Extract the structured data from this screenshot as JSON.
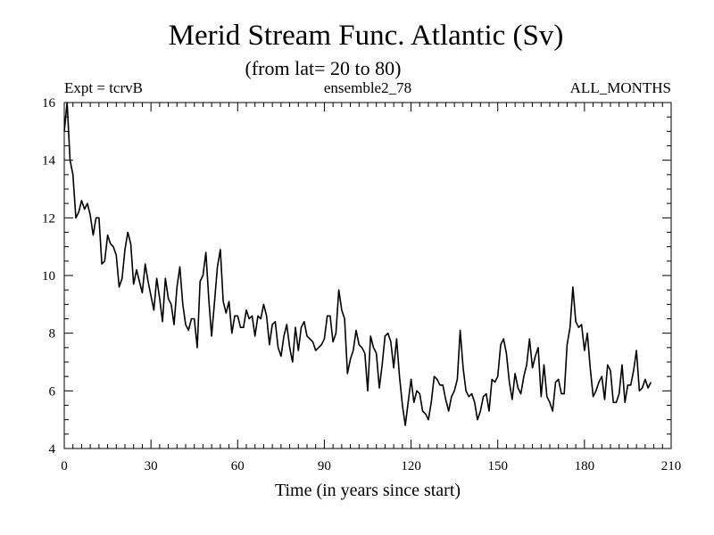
{
  "chart_data": {
    "type": "line",
    "title": "Merid Stream Func. Atlantic (Sv)",
    "subtitle": "(from lat= 20 to 80)",
    "header_left": "Expt = tcrvB",
    "header_center": "ensemble2_78",
    "header_right": "ALL_MONTHS",
    "xlabel": "Time (in years since start)",
    "ylabel": "",
    "xlim": [
      0,
      210
    ],
    "ylim": [
      4,
      16
    ],
    "xticks": [
      0,
      30,
      60,
      90,
      120,
      150,
      180,
      210
    ],
    "yticks": [
      4,
      6,
      8,
      10,
      12,
      14,
      16
    ],
    "x_minor_step": 3,
    "y_minor_step": 0.5,
    "grid": false,
    "series": [
      {
        "name": "ensemble2_78",
        "x_start": 0,
        "x_step": 1,
        "values": [
          15.0,
          16.0,
          14.0,
          13.5,
          12.0,
          12.2,
          12.6,
          12.3,
          12.5,
          12.1,
          11.4,
          12.0,
          12.0,
          10.4,
          10.5,
          11.4,
          11.1,
          11.0,
          10.7,
          9.6,
          9.9,
          10.9,
          11.5,
          11.1,
          9.7,
          10.2,
          9.8,
          9.4,
          10.4,
          9.8,
          9.3,
          8.8,
          9.9,
          9.2,
          8.4,
          9.9,
          9.2,
          9.0,
          8.3,
          9.6,
          10.3,
          9.0,
          8.3,
          8.1,
          8.5,
          8.5,
          7.5,
          9.8,
          10.0,
          10.8,
          9.2,
          7.9,
          9.1,
          10.3,
          10.9,
          9.1,
          8.7,
          9.1,
          8.0,
          8.6,
          8.6,
          8.2,
          8.2,
          8.8,
          8.5,
          8.6,
          7.9,
          8.6,
          8.5,
          9.0,
          8.6,
          7.6,
          8.3,
          8.4,
          7.5,
          7.2,
          7.9,
          8.3,
          7.5,
          7.0,
          8.2,
          7.4,
          8.2,
          8.4,
          7.9,
          7.8,
          7.7,
          7.4,
          7.5,
          7.6,
          7.8,
          8.6,
          8.6,
          7.7,
          8.0,
          9.5,
          8.8,
          8.5,
          6.6,
          7.1,
          7.4,
          8.1,
          7.6,
          7.5,
          7.3,
          6.0,
          7.9,
          7.5,
          7.3,
          6.1,
          6.9,
          7.9,
          8.0,
          7.7,
          6.8,
          7.8,
          6.5,
          5.5,
          4.8,
          5.6,
          6.4,
          5.6,
          6.0,
          5.9,
          5.3,
          5.2,
          5.0,
          5.6,
          6.5,
          6.4,
          6.2,
          6.2,
          5.7,
          5.3,
          5.8,
          6.0,
          6.4,
          8.1,
          6.8,
          6.0,
          5.8,
          5.9,
          5.6,
          5.0,
          5.3,
          5.8,
          5.9,
          5.3,
          6.4,
          6.3,
          6.5,
          7.6,
          7.8,
          7.3,
          6.3,
          5.7,
          6.6,
          6.1,
          5.9,
          6.5,
          6.9,
          7.8,
          6.8,
          7.2,
          7.5,
          5.8,
          6.9,
          5.8,
          5.6,
          5.3,
          6.3,
          6.4,
          5.9,
          5.9,
          7.6,
          8.2,
          9.6,
          8.4,
          8.2,
          8.3,
          7.4,
          8.0,
          6.8,
          5.8,
          6.0,
          6.3,
          6.5,
          5.7,
          6.9,
          6.7,
          5.6,
          5.6,
          5.9,
          6.9,
          5.6,
          6.2,
          6.2,
          6.7,
          7.4,
          6.0,
          6.1,
          6.4,
          6.1,
          6.3
        ]
      }
    ]
  }
}
